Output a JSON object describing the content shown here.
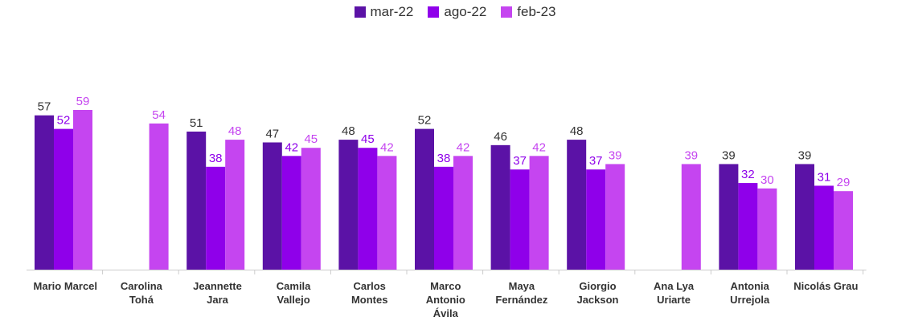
{
  "chart_data": {
    "type": "bar",
    "categories": [
      [
        "Mario Marcel"
      ],
      [
        "Carolina",
        "Tohá"
      ],
      [
        "Jeannette",
        "Jara"
      ],
      [
        "Camila",
        "Vallejo"
      ],
      [
        "Carlos",
        "Montes"
      ],
      [
        "Marco",
        "Antonio",
        "Ávila"
      ],
      [
        "Maya",
        "Fernández"
      ],
      [
        "Giorgio",
        "Jackson"
      ],
      [
        "Ana Lya",
        "Uriarte"
      ],
      [
        "Antonia",
        "Urrejola"
      ],
      [
        "Nicolás Grau"
      ]
    ],
    "series": [
      {
        "name": "mar-22",
        "color": "#5b12a6",
        "label_color": "#333333",
        "values": [
          57,
          null,
          51,
          47,
          48,
          52,
          46,
          48,
          null,
          39,
          39
        ]
      },
      {
        "name": "ago-22",
        "color": "#8f00ea",
        "label_color": "#8f00ea",
        "values": [
          52,
          null,
          38,
          42,
          45,
          38,
          37,
          37,
          null,
          32,
          31
        ]
      },
      {
        "name": "feb-23",
        "color": "#c545f0",
        "label_color": "#c545f0",
        "values": [
          59,
          54,
          48,
          45,
          42,
          42,
          42,
          39,
          39,
          30,
          29
        ]
      }
    ],
    "ylim": [
      0,
      65
    ],
    "grid": false,
    "legend": "top-center"
  }
}
